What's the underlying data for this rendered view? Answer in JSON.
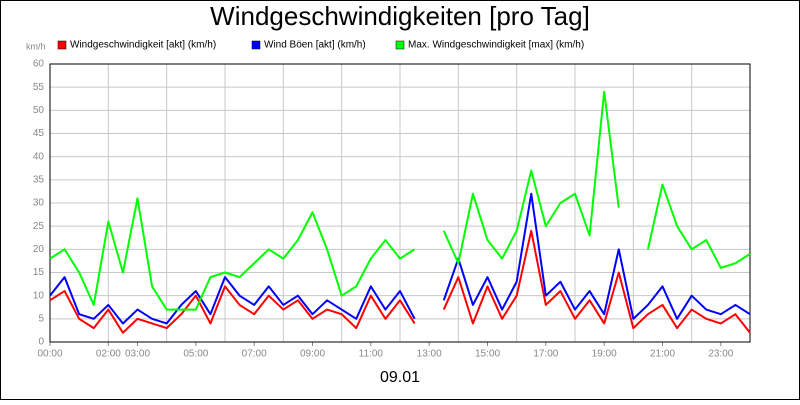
{
  "chart_data": {
    "type": "line",
    "title": "Windgeschwindigkeiten [pro Tag]",
    "y_unit": "km/h",
    "x_label": "09.01",
    "x": [
      0,
      0.5,
      1,
      1.5,
      2,
      2.5,
      3,
      3.5,
      4,
      4.5,
      5,
      5.5,
      6,
      6.5,
      7,
      7.5,
      8,
      8.5,
      9,
      9.5,
      10,
      10.5,
      11,
      11.5,
      12,
      12.5,
      13,
      13.5,
      14,
      14.5,
      15,
      15.5,
      16,
      16.5,
      17,
      17.5,
      18,
      18.5,
      19,
      19.5,
      20,
      20.5,
      21,
      21.5,
      22,
      22.5,
      23,
      23.5,
      24
    ],
    "series": [
      {
        "name": "Windgeschwindigkeit [akt] (km/h)",
        "color": "#ff0000",
        "values": [
          9,
          11,
          5,
          3,
          7,
          2,
          5,
          4,
          3,
          6,
          10,
          4,
          12,
          8,
          6,
          10,
          7,
          9,
          5,
          7,
          6,
          3,
          10,
          5,
          9,
          4,
          null,
          7,
          14,
          4,
          12,
          5,
          10,
          24,
          8,
          11,
          5,
          9,
          4,
          15,
          3,
          6,
          8,
          3,
          7,
          5,
          4,
          6,
          2
        ]
      },
      {
        "name": "Wind Böen [akt] (km/h)",
        "color": "#0000ff",
        "values": [
          10,
          14,
          6,
          5,
          8,
          4,
          7,
          5,
          4,
          8,
          11,
          6,
          14,
          10,
          8,
          12,
          8,
          10,
          6,
          9,
          7,
          5,
          12,
          7,
          11,
          5,
          null,
          9,
          18,
          8,
          14,
          7,
          13,
          32,
          10,
          13,
          7,
          11,
          6,
          20,
          5,
          8,
          12,
          5,
          10,
          7,
          6,
          8,
          6
        ]
      },
      {
        "name": "Max. Windgeschwindigkeit [max] (km/h)",
        "color": "#00ff00",
        "values": [
          18,
          20,
          15,
          8,
          26,
          15,
          31,
          12,
          7,
          7,
          7,
          14,
          15,
          14,
          17,
          20,
          18,
          22,
          28,
          20,
          10,
          12,
          18,
          22,
          18,
          20,
          null,
          24,
          17,
          32,
          22,
          18,
          24,
          37,
          25,
          30,
          32,
          23,
          54,
          29,
          null,
          20,
          34,
          25,
          20,
          22,
          16,
          17,
          19
        ]
      }
    ],
    "xlim": [
      0,
      24
    ],
    "xticks": [
      {
        "value": 0,
        "label": "00:00"
      },
      {
        "value": 2,
        "label": "02:00"
      },
      {
        "value": 3,
        "label": "03:00"
      },
      {
        "value": 5,
        "label": "05:00"
      },
      {
        "value": 7,
        "label": "07:00"
      },
      {
        "value": 9,
        "label": "09:00"
      },
      {
        "value": 11,
        "label": "11:00"
      },
      {
        "value": 13,
        "label": "13:00"
      },
      {
        "value": 15,
        "label": "15:00"
      },
      {
        "value": 17,
        "label": "17:00"
      },
      {
        "value": 19,
        "label": "19:00"
      },
      {
        "value": 21,
        "label": "21:00"
      },
      {
        "value": 23,
        "label": "23:00"
      }
    ],
    "xgrid": [
      0,
      2,
      4,
      6,
      8,
      10,
      12,
      14,
      16,
      18,
      20,
      22,
      24
    ],
    "ylim": [
      0,
      60
    ],
    "yticks": [
      0,
      5,
      10,
      15,
      20,
      25,
      30,
      35,
      40,
      45,
      50,
      55,
      60
    ],
    "grid": true
  }
}
